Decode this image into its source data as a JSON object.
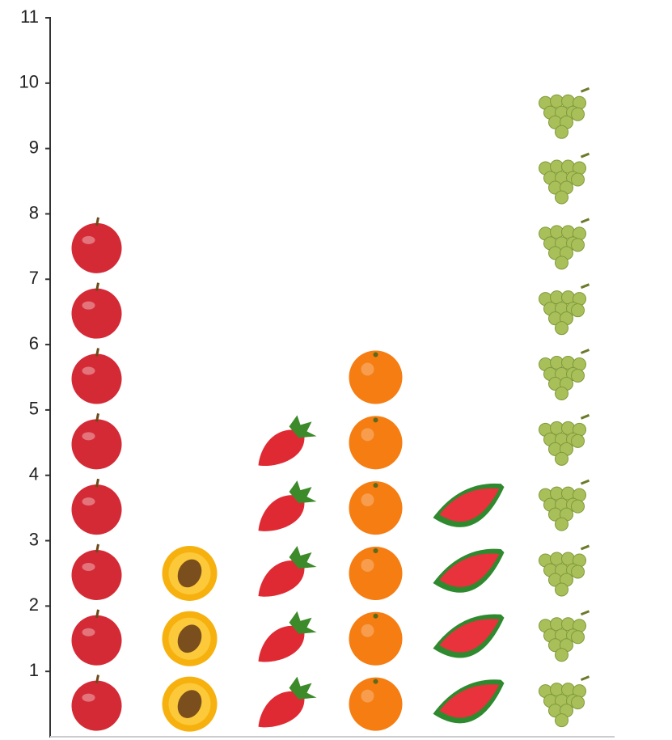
{
  "chart_data": {
    "type": "pictograph",
    "categories": [
      null,
      null,
      null,
      null,
      null,
      null
    ],
    "values": [
      8,
      3,
      5,
      6,
      4,
      10
    ],
    "colors": [
      "#d42a35",
      "#f7b10f",
      "#e02a33",
      "#f57d12",
      "#e8323c",
      "#a9c05a"
    ],
    "ylim": [
      0,
      11
    ],
    "yticks": [
      1,
      2,
      3,
      4,
      5,
      6,
      7,
      8,
      9,
      10,
      11
    ],
    "grid": false
  }
}
